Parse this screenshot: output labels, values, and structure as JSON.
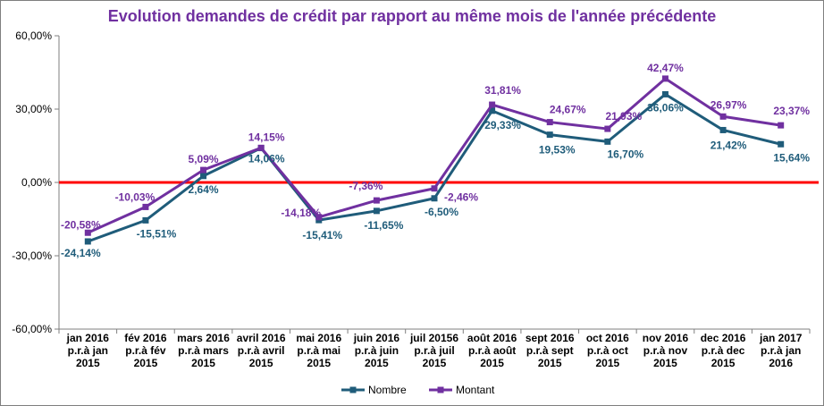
{
  "chart_data": {
    "type": "line",
    "title": "Evolution demandes de crédit par rapport au même mois de l'année précédente",
    "categories": [
      [
        "jan 2016",
        "p.r.à jan",
        "2015"
      ],
      [
        "fév 2016",
        "p.r.à fév",
        "2015"
      ],
      [
        "mars 2016",
        "p.r.à mars",
        "2015"
      ],
      [
        "avril 2016",
        "p.r.à avril",
        "2015"
      ],
      [
        "mai 2016",
        "p.r.à mai",
        "2015"
      ],
      [
        "juin 2016",
        "p.r.à juin",
        "2015"
      ],
      [
        "juil 20156",
        "p.r.à juil",
        "2015"
      ],
      [
        "août 2016",
        "p.r.à août",
        "2015"
      ],
      [
        "sept 2016",
        "p.r.à sept",
        "2015"
      ],
      [
        "oct 2016",
        "p.r.à oct",
        "2015"
      ],
      [
        "nov 2016",
        "p.r.à nov",
        "2015"
      ],
      [
        "dec 2016",
        "p.r.à dec",
        "2015"
      ],
      [
        "jan 2017",
        "p.r.à jan",
        "2016"
      ]
    ],
    "series": [
      {
        "name": "Nombre",
        "color": "#1f5c7a",
        "values": [
          -24.14,
          -15.51,
          2.64,
          14.06,
          -15.41,
          -11.65,
          -6.5,
          29.33,
          19.53,
          16.7,
          36.06,
          21.42,
          15.64
        ],
        "labels": [
          "-24,14%",
          "-15,51%",
          "2,64%",
          "14,06%",
          "-15,41%",
          "-11,65%",
          "-6,50%",
          "29,33%",
          "19,53%",
          "16,70%",
          "36,06%",
          "21,42%",
          "15,64%"
        ]
      },
      {
        "name": "Montant",
        "color": "#7030a0",
        "values": [
          -20.58,
          -10.03,
          5.09,
          14.15,
          -14.18,
          -7.36,
          -2.46,
          31.81,
          24.67,
          21.93,
          42.47,
          26.97,
          23.37
        ],
        "labels": [
          "-20,58%",
          "-10,03%",
          "5,09%",
          "14,15%",
          "-14,18%",
          "-7,36%",
          "-2,46%",
          "31,81%",
          "24,67%",
          "21,93%",
          "42,47%",
          "26,97%",
          "23,37%"
        ]
      }
    ],
    "yticks": [
      60,
      30,
      0,
      -30,
      -60
    ],
    "ytick_labels": [
      "60,00%",
      "30,00%",
      "0,00%",
      "-30,00%",
      "-60,00%"
    ],
    "ylim": [
      -60,
      60
    ],
    "zero_line_color": "#ff0000",
    "grid": false,
    "legend_position": "bottom"
  }
}
